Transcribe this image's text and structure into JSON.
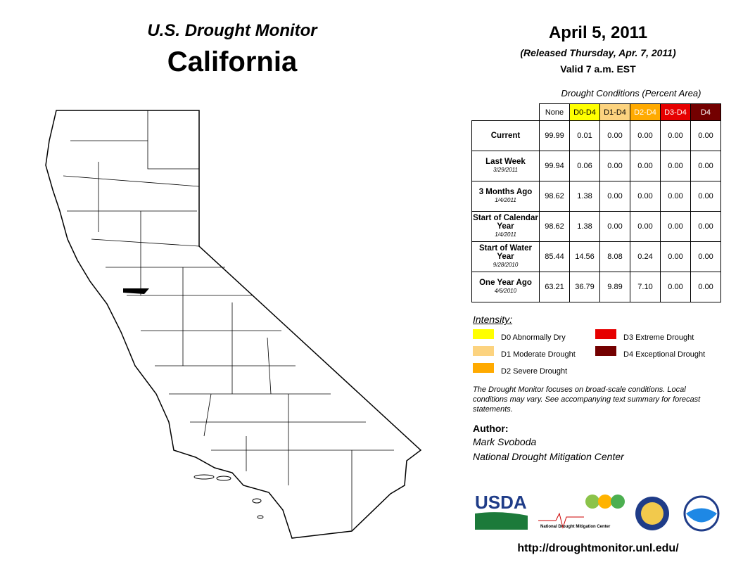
{
  "header": {
    "title": "U.S. Drought Monitor",
    "state": "California",
    "date": "April 5, 2011",
    "released": "(Released Thursday, Apr. 7, 2011)",
    "valid": "Valid 7 a.m. EST"
  },
  "table": {
    "caption": "Drought Conditions (Percent Area)",
    "columns": [
      {
        "label": "None",
        "color": "#ffffff",
        "text_color": "#000000"
      },
      {
        "label": "D0-D4",
        "color": "#ffff00",
        "text_color": "#000000"
      },
      {
        "label": "D1-D4",
        "color": "#fcd37f",
        "text_color": "#000000"
      },
      {
        "label": "D2-D4",
        "color": "#ffaa00",
        "text_color": "#ffffff"
      },
      {
        "label": "D3-D4",
        "color": "#e60000",
        "text_color": "#ffffff"
      },
      {
        "label": "D4",
        "color": "#730000",
        "text_color": "#ffffff"
      }
    ],
    "rows": [
      {
        "label": "Current",
        "values": [
          "99.99",
          "0.01",
          "0.00",
          "0.00",
          "0.00",
          "0.00"
        ]
      },
      {
        "label": "Last Week",
        "date": "3/29/2011",
        "values": [
          "99.94",
          "0.06",
          "0.00",
          "0.00",
          "0.00",
          "0.00"
        ]
      },
      {
        "label": "3 Months Ago",
        "date": "1/4/2011",
        "values": [
          "98.62",
          "1.38",
          "0.00",
          "0.00",
          "0.00",
          "0.00"
        ]
      },
      {
        "label": "Start of Calendar Year",
        "date": "1/4/2011",
        "values": [
          "98.62",
          "1.38",
          "0.00",
          "0.00",
          "0.00",
          "0.00"
        ]
      },
      {
        "label": "Start of Water Year",
        "date": "9/28/2010",
        "values": [
          "85.44",
          "14.56",
          "8.08",
          "0.24",
          "0.00",
          "0.00"
        ]
      },
      {
        "label": "One Year Ago",
        "date": "4/6/2010",
        "values": [
          "63.21",
          "36.79",
          "9.89",
          "7.10",
          "0.00",
          "0.00"
        ]
      }
    ]
  },
  "legend": {
    "title": "Intensity:",
    "items": [
      {
        "label": "D0 Abnormally Dry",
        "color": "#ffff00"
      },
      {
        "label": "D3 Extreme Drought",
        "color": "#e60000"
      },
      {
        "label": "D1 Moderate Drought",
        "color": "#fcd37f"
      },
      {
        "label": "D4 Exceptional Drought",
        "color": "#730000"
      },
      {
        "label": "D2 Severe Drought",
        "color": "#ffaa00"
      }
    ]
  },
  "note": "The Drought Monitor focuses on broad-scale conditions. Local conditions may vary. See accompanying text summary for forecast statements.",
  "author": {
    "heading": "Author:",
    "name": "Mark Svoboda",
    "organization": "National Drought Mitigation Center"
  },
  "logos": {
    "usda": "USDA",
    "ndmc": "National Drought Mitigation Center"
  },
  "url": "http://droughtmonitor.unl.edu/"
}
